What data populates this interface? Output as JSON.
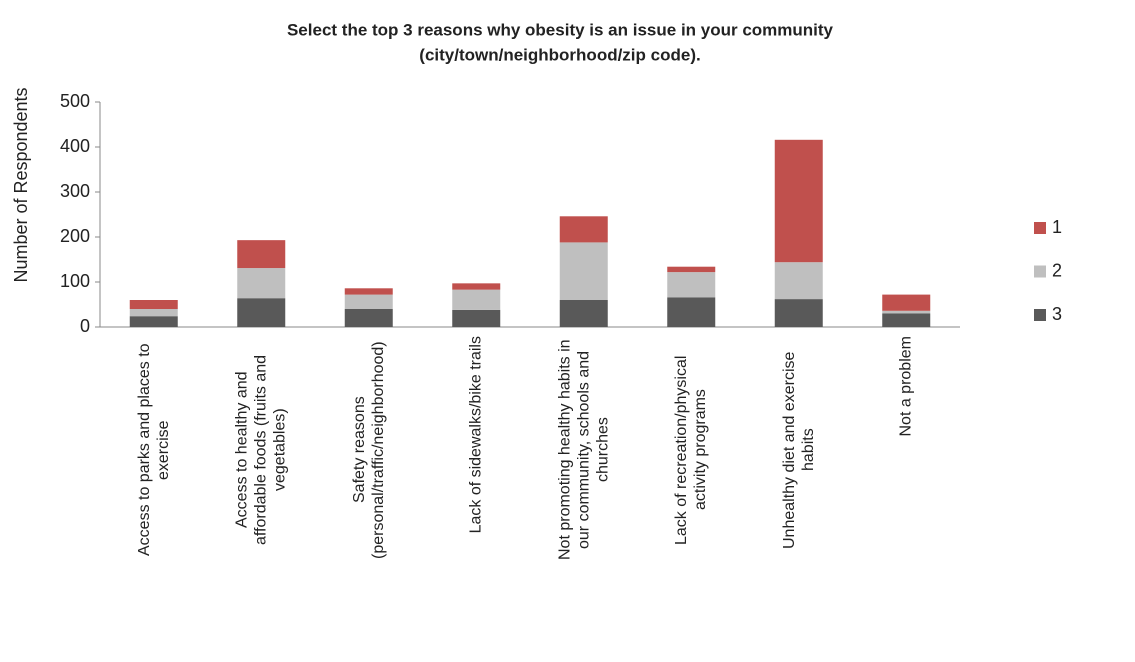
{
  "chart_data": {
    "type": "stacked-bar",
    "title": "Select the top 3 reasons why obesity is an issue in your community",
    "subtitle": "(city/town/neighborhood/zip code).",
    "y_label": "Number of Respondents",
    "categories": [
      "Access to parks and places to exercise",
      "Access to healthy and affordable foods (fruits and vegetables)",
      "Safety reasons (personal/traffic/neighborhood)",
      "Lack of sidewalks/bike trails",
      "Not promoting healthy habits in our community, schools and churches",
      "Lack of recreation/physical activity programs",
      "Unhealthy diet and exercise habits",
      "Not a problem"
    ],
    "series": [
      {
        "name": "3",
        "color": "#595959",
        "values": [
          24,
          64,
          40,
          38,
          60,
          66,
          62,
          30
        ]
      },
      {
        "name": "2",
        "color": "#bfbfbf",
        "values": [
          16,
          67,
          32,
          45,
          128,
          56,
          82,
          6
        ]
      },
      {
        "name": "1",
        "color": "#c0504d",
        "values": [
          20,
          62,
          14,
          14,
          58,
          12,
          272,
          36
        ]
      }
    ],
    "ylim": [
      0,
      500
    ],
    "yticks": [
      0,
      100,
      200,
      300,
      400,
      500
    ],
    "legend": "right"
  }
}
